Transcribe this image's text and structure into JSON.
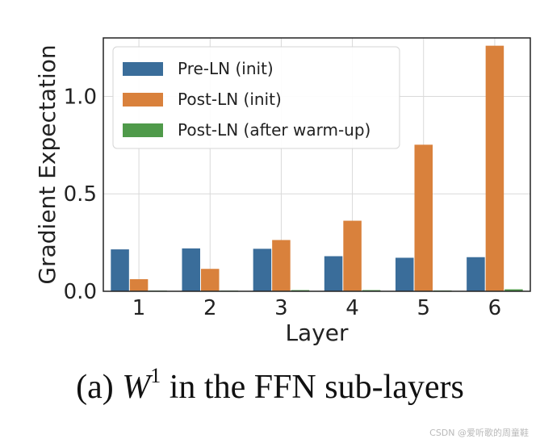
{
  "chart_data": {
    "type": "bar",
    "categories": [
      "1",
      "2",
      "3",
      "4",
      "5",
      "6"
    ],
    "series": [
      {
        "name": "Pre-LN (init)",
        "color": "#3a6d9a",
        "values": [
          0.215,
          0.22,
          0.218,
          0.18,
          0.172,
          0.175
        ]
      },
      {
        "name": "Post-LN (init)",
        "color": "#d9813c",
        "values": [
          0.062,
          0.115,
          0.263,
          0.362,
          0.752,
          1.26
        ]
      },
      {
        "name": "Post-LN (after warm-up)",
        "color": "#4f9a4a",
        "values": [
          0.0,
          0.002,
          0.006,
          0.006,
          0.004,
          0.01
        ]
      }
    ],
    "xlabel": "Layer",
    "ylabel": "Gradient Expectation",
    "ylim": [
      0,
      1.3
    ],
    "yticks": [
      "0.0",
      "0.5",
      "1.0"
    ],
    "grid": true,
    "legend_position": "top-left"
  },
  "caption": {
    "prefix": "(a) ",
    "math_symbol": "W",
    "superscript": "1",
    "suffix": " in the FFN sub-layers"
  },
  "watermark": "CSDN @爱听歌的周童鞋"
}
